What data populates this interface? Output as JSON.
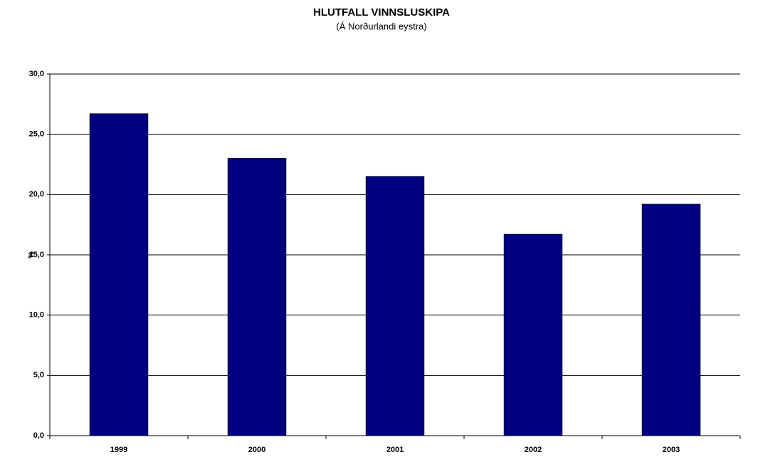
{
  "chart_data": {
    "type": "bar",
    "title": "HLUTFALL VINNSLUSKIPA",
    "subtitle": "(Á Norðurlandi eystra)",
    "y_label": "%",
    "categories": [
      "1999",
      "2000",
      "2001",
      "2002",
      "2003"
    ],
    "values": [
      26.7,
      23.0,
      21.5,
      16.7,
      19.2
    ],
    "color": "#000080",
    "ylim": [
      0,
      30
    ],
    "yticks": [
      {
        "value": 0,
        "label": "0,0"
      },
      {
        "value": 5,
        "label": "5,0"
      },
      {
        "value": 10,
        "label": "10,0"
      },
      {
        "value": 15,
        "label": "15,0"
      },
      {
        "value": 20,
        "label": "20,0"
      },
      {
        "value": 25,
        "label": "25,0"
      },
      {
        "value": 30,
        "label": "30,0"
      }
    ],
    "grid": true
  }
}
